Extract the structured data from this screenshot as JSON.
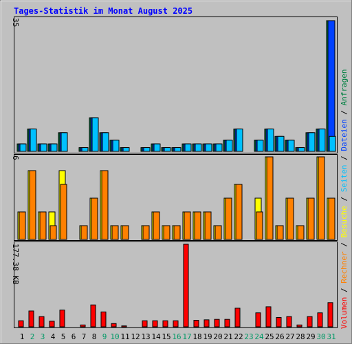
{
  "title": "Tages-Statistik im Monat August 2025",
  "colors": {
    "background": "#c0c0c0",
    "title": "#0000ff",
    "weekday": "#000000",
    "weekend": "#009966",
    "hits": "#008040",
    "files": "#0040ff",
    "pages": "#00c0ff",
    "visits": "#ffff00",
    "sites": "#ff8000",
    "kbytes": "#ff0000"
  },
  "legend": {
    "hits": "Anfragen",
    "files": "Dateien",
    "pages": "Seiten",
    "visits": "Besuche",
    "sites": "Rechner",
    "kbytes": "Volumen"
  },
  "chart_data": [
    {
      "type": "bar",
      "name": "hits-files-pages",
      "x": [
        1,
        2,
        3,
        4,
        5,
        6,
        7,
        8,
        9,
        10,
        11,
        12,
        13,
        14,
        15,
        16,
        17,
        18,
        19,
        20,
        21,
        22,
        23,
        24,
        25,
        26,
        27,
        28,
        29,
        30,
        31
      ],
      "weekend_days": [
        2,
        3,
        9,
        10,
        16,
        17,
        23,
        24,
        30,
        31
      ],
      "ymax_label": "35",
      "ylim": [
        0,
        35
      ],
      "series": [
        {
          "name": "Anfragen",
          "values": [
            2,
            6,
            2,
            2,
            5,
            0,
            1,
            9,
            5,
            3,
            1,
            0,
            1,
            2,
            1,
            1,
            2,
            2,
            2,
            2,
            3,
            6,
            0,
            3,
            6,
            4,
            3,
            1,
            5,
            6,
            35
          ]
        },
        {
          "name": "Dateien",
          "values": [
            2,
            6,
            2,
            2,
            5,
            0,
            1,
            9,
            5,
            3,
            1,
            0,
            1,
            2,
            1,
            1,
            2,
            2,
            2,
            2,
            3,
            6,
            0,
            3,
            6,
            4,
            3,
            1,
            5,
            6,
            35
          ]
        },
        {
          "name": "Seiten",
          "values": [
            2,
            6,
            2,
            2,
            5,
            0,
            1,
            9,
            5,
            3,
            1,
            0,
            1,
            2,
            1,
            1,
            2,
            2,
            2,
            2,
            3,
            6,
            0,
            3,
            6,
            4,
            3,
            1,
            5,
            6,
            4
          ]
        }
      ]
    },
    {
      "type": "bar",
      "name": "visits-sites",
      "x": [
        1,
        2,
        3,
        4,
        5,
        6,
        7,
        8,
        9,
        10,
        11,
        12,
        13,
        14,
        15,
        16,
        17,
        18,
        19,
        20,
        21,
        22,
        23,
        24,
        25,
        26,
        27,
        28,
        29,
        30,
        31
      ],
      "ymax_label": "6",
      "ylim": [
        0,
        6
      ],
      "series": [
        {
          "name": "Besuche",
          "values": [
            2,
            5,
            2,
            2,
            5,
            0,
            1,
            3,
            5,
            1,
            1,
            0,
            1,
            2,
            1,
            1,
            2,
            2,
            2,
            1,
            3,
            4,
            0,
            3,
            6,
            1,
            3,
            1,
            3,
            6,
            3
          ]
        },
        {
          "name": "Rechner",
          "values": [
            2,
            5,
            2,
            1,
            4,
            0,
            1,
            3,
            5,
            1,
            1,
            0,
            1,
            2,
            1,
            1,
            2,
            2,
            2,
            1,
            3,
            4,
            0,
            2,
            6,
            1,
            3,
            1,
            3,
            6,
            3
          ]
        }
      ]
    },
    {
      "type": "bar",
      "name": "volume",
      "x": [
        1,
        2,
        3,
        4,
        5,
        6,
        7,
        8,
        9,
        10,
        11,
        12,
        13,
        14,
        15,
        16,
        17,
        18,
        19,
        20,
        21,
        22,
        23,
        24,
        25,
        26,
        27,
        28,
        29,
        30,
        31
      ],
      "ymax_label": "177.38 KB",
      "ylim": [
        0,
        177.38
      ],
      "series": [
        {
          "name": "Volumen",
          "values": [
            13,
            34,
            22,
            12,
            36,
            0,
            4,
            47,
            32,
            7,
            2,
            0,
            13,
            13,
            13,
            13,
            177.38,
            14,
            15,
            16,
            16,
            40,
            0,
            30,
            43,
            20,
            22,
            4,
            22,
            30,
            52
          ]
        }
      ]
    }
  ]
}
